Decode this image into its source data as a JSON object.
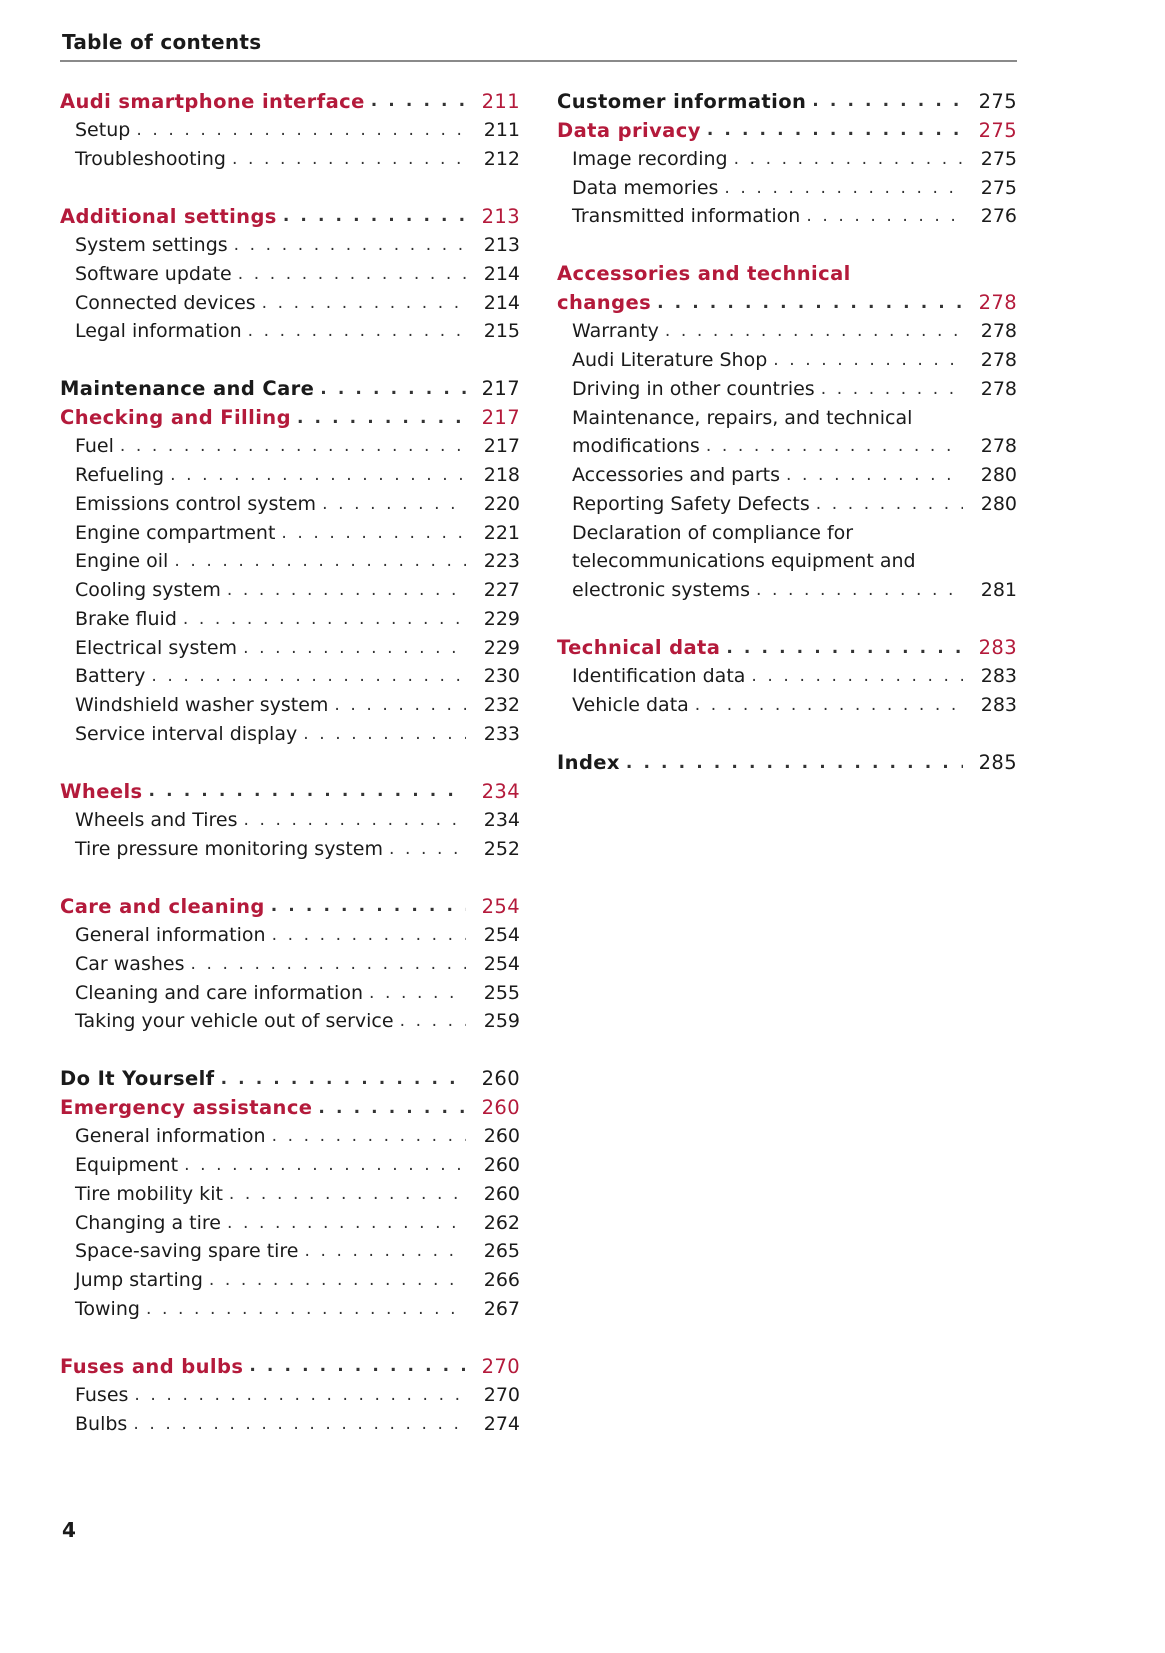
{
  "header": {
    "title": "Table of contents"
  },
  "footer": {
    "page_number": "4"
  },
  "colors": {
    "accent": "#b41a3b",
    "text": "#1a1a1a"
  },
  "left": [
    {
      "kind": "red",
      "label": "Audi smartphone interface",
      "page": "211"
    },
    {
      "kind": "sub",
      "label": "Setup",
      "page": "211"
    },
    {
      "kind": "sub",
      "label": "Troubleshooting",
      "page": "212"
    },
    {
      "kind": "blank"
    },
    {
      "kind": "red",
      "label": "Additional settings",
      "page": "213"
    },
    {
      "kind": "sub",
      "label": "System settings",
      "page": "213"
    },
    {
      "kind": "sub",
      "label": "Software update",
      "page": "214"
    },
    {
      "kind": "sub",
      "label": "Connected devices",
      "page": "214"
    },
    {
      "kind": "sub",
      "label": "Legal information",
      "page": "215"
    },
    {
      "kind": "blank"
    },
    {
      "kind": "black",
      "label": "Maintenance and Care",
      "page": "217"
    },
    {
      "kind": "red",
      "label": "Checking and Filling",
      "page": "217"
    },
    {
      "kind": "sub",
      "label": "Fuel",
      "page": "217"
    },
    {
      "kind": "sub",
      "label": "Refueling",
      "page": "218"
    },
    {
      "kind": "sub",
      "label": "Emissions control system",
      "page": "220"
    },
    {
      "kind": "sub",
      "label": "Engine compartment",
      "page": "221"
    },
    {
      "kind": "sub",
      "label": "Engine oil",
      "page": "223"
    },
    {
      "kind": "sub",
      "label": "Cooling system",
      "page": "227"
    },
    {
      "kind": "sub",
      "label": "Brake fluid",
      "page": "229"
    },
    {
      "kind": "sub",
      "label": "Electrical system",
      "page": "229"
    },
    {
      "kind": "sub",
      "label": "Battery",
      "page": "230"
    },
    {
      "kind": "sub",
      "label": "Windshield washer system",
      "page": "232"
    },
    {
      "kind": "sub",
      "label": "Service interval display",
      "page": "233"
    },
    {
      "kind": "blank"
    },
    {
      "kind": "red",
      "label": "Wheels",
      "page": "234"
    },
    {
      "kind": "sub",
      "label": "Wheels and Tires",
      "page": "234"
    },
    {
      "kind": "sub",
      "label": "Tire pressure monitoring system",
      "page": "252"
    },
    {
      "kind": "blank"
    },
    {
      "kind": "red",
      "label": "Care and cleaning",
      "page": "254"
    },
    {
      "kind": "sub",
      "label": "General information",
      "page": "254"
    },
    {
      "kind": "sub",
      "label": "Car washes",
      "page": "254"
    },
    {
      "kind": "sub",
      "label": "Cleaning and care information",
      "page": "255"
    },
    {
      "kind": "sub",
      "label": "Taking your vehicle out of service",
      "page": "259"
    },
    {
      "kind": "blank"
    },
    {
      "kind": "black",
      "label": "Do It Yourself",
      "page": "260"
    },
    {
      "kind": "red",
      "label": "Emergency assistance",
      "page": "260"
    },
    {
      "kind": "sub",
      "label": "General information",
      "page": "260"
    },
    {
      "kind": "sub",
      "label": "Equipment",
      "page": "260"
    },
    {
      "kind": "sub",
      "label": "Tire mobility kit",
      "page": "260"
    },
    {
      "kind": "sub",
      "label": "Changing a tire",
      "page": "262"
    },
    {
      "kind": "sub",
      "label": "Space-saving spare tire",
      "page": "265"
    },
    {
      "kind": "sub",
      "label": "Jump starting",
      "page": "266"
    },
    {
      "kind": "sub",
      "label": "Towing",
      "page": "267"
    },
    {
      "kind": "blank"
    },
    {
      "kind": "red",
      "label": "Fuses and bulbs",
      "page": "270"
    },
    {
      "kind": "sub",
      "label": "Fuses",
      "page": "270"
    },
    {
      "kind": "sub",
      "label": "Bulbs",
      "page": "274"
    }
  ],
  "right": [
    {
      "kind": "black",
      "label": "Customer information",
      "page": "275"
    },
    {
      "kind": "red",
      "label": "Data privacy",
      "page": "275"
    },
    {
      "kind": "sub",
      "label": "Image recording",
      "page": "275"
    },
    {
      "kind": "sub",
      "label": "Data memories",
      "page": "275"
    },
    {
      "kind": "sub",
      "label": "Transmitted information",
      "page": "276"
    },
    {
      "kind": "blank"
    },
    {
      "kind": "red",
      "pre": [
        "Accessories and technical"
      ],
      "label": "changes",
      "page": "278"
    },
    {
      "kind": "sub",
      "label": "Warranty",
      "page": "278"
    },
    {
      "kind": "sub",
      "label": "Audi Literature Shop",
      "page": "278"
    },
    {
      "kind": "sub",
      "label": "Driving in other countries",
      "page": "278"
    },
    {
      "kind": "sub",
      "pre": [
        "Maintenance, repairs, and technical"
      ],
      "label": "modifications",
      "page": "278"
    },
    {
      "kind": "sub",
      "label": "Accessories and parts",
      "page": "280"
    },
    {
      "kind": "sub",
      "label": "Reporting Safety Defects",
      "page": "280"
    },
    {
      "kind": "sub",
      "pre": [
        "Declaration of compliance for",
        "telecommunications equipment and"
      ],
      "label": "electronic systems",
      "page": "281"
    },
    {
      "kind": "blank"
    },
    {
      "kind": "red",
      "label": "Technical data",
      "page": "283"
    },
    {
      "kind": "sub",
      "label": "Identification data",
      "page": "283"
    },
    {
      "kind": "sub",
      "label": "Vehicle data",
      "page": "283"
    },
    {
      "kind": "blank"
    },
    {
      "kind": "black",
      "label": "Index",
      "page": "285"
    }
  ]
}
